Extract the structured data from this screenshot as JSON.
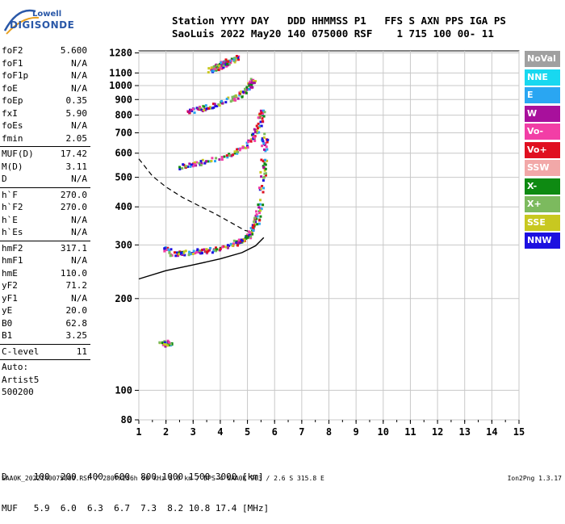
{
  "logo": {
    "line1": "Lowell",
    "line2": "DIGISONDE"
  },
  "header": {
    "line1": "Station YYYY DAY   DDD HHMMSS P1   FFS S AXN PPS IGA PS",
    "line2": "SaoLuis 2022 May20 140 075000 RSF    1 715 100 00- 11"
  },
  "params": {
    "group1": [
      {
        "name": "foF2",
        "value": "5.600"
      },
      {
        "name": "foF1",
        "value": "N/A"
      },
      {
        "name": "foF1p",
        "value": "N/A"
      },
      {
        "name": "foE",
        "value": "N/A"
      },
      {
        "name": "foEp",
        "value": "0.35"
      },
      {
        "name": "fxI",
        "value": "5.90"
      },
      {
        "name": "foEs",
        "value": "N/A"
      },
      {
        "name": "fmin",
        "value": "2.05"
      }
    ],
    "group2": [
      {
        "name": "MUF(D)",
        "value": "17.42"
      },
      {
        "name": "M(D)",
        "value": "3.11"
      },
      {
        "name": "D",
        "value": "N/A"
      }
    ],
    "group3": [
      {
        "name": "h`F",
        "value": "270.0"
      },
      {
        "name": "h`F2",
        "value": "270.0"
      },
      {
        "name": "h`E",
        "value": "N/A"
      },
      {
        "name": "h`Es",
        "value": "N/A"
      }
    ],
    "group4": [
      {
        "name": "hmF2",
        "value": "317.1"
      },
      {
        "name": "hmF1",
        "value": "N/A"
      },
      {
        "name": "hmE",
        "value": "110.0"
      },
      {
        "name": "yF2",
        "value": "71.2"
      },
      {
        "name": "yF1",
        "value": "N/A"
      },
      {
        "name": "yE",
        "value": "20.0"
      },
      {
        "name": "B0",
        "value": "62.8"
      },
      {
        "name": "B1",
        "value": "3.25"
      }
    ],
    "group5": [
      {
        "name": "C-level",
        "value": "11"
      }
    ],
    "auto": [
      "Auto:",
      "Artist5",
      "500200"
    ]
  },
  "legend": [
    {
      "label": "NoVal",
      "color": "#a0a0a0"
    },
    {
      "label": "NNE",
      "color": "#18d8f0"
    },
    {
      "label": "E",
      "color": "#2aa6f2"
    },
    {
      "label": "W",
      "color": "#a8109c"
    },
    {
      "label": "Vo-",
      "color": "#f23ea6"
    },
    {
      "label": "Vo+",
      "color": "#e01020"
    },
    {
      "label": "SSW",
      "color": "#f2a8a8"
    },
    {
      "label": "X-",
      "color": "#0e8a12"
    },
    {
      "label": "X+",
      "color": "#7cba5e"
    },
    {
      "label": "SSE",
      "color": "#c8c820"
    },
    {
      "label": "NNW",
      "color": "#1c10e0"
    }
  ],
  "bottom": {
    "line1": "D     100  200  400  600  800 1000 1500 3000 [km]",
    "line2": "MUF   5.9  6.0  6.3  6.7  7.3  8.2 10.8 17.4 [MHz]"
  },
  "footer": {
    "left": "SAA0K_2022140075000.RSF / 280fx256h 50 kHz 5.0 km / DPS-4 SAA0K 903 / 2.6 S 315.8 E",
    "right": "Ion2Png 1.3.17"
  },
  "chart_data": {
    "type": "scatter",
    "title": "",
    "xlabel": "",
    "ylabel": "",
    "xlim": [
      1,
      15
    ],
    "ylim": [
      80,
      1300
    ],
    "y_scale": "log",
    "x_ticks": [
      "1",
      "2",
      "3",
      "4",
      "5",
      "6",
      "7",
      "8",
      "9",
      "10",
      "11",
      "12",
      "13",
      "14",
      "15"
    ],
    "y_ticks": [
      "80",
      "100",
      "200",
      "300",
      "400",
      "500",
      "600",
      "700",
      "800",
      "900",
      "1000",
      "1100",
      "1280"
    ],
    "grid": true,
    "traces": [
      {
        "name": "1st hop F2 trace",
        "points": [
          [
            1.9,
            295
          ],
          [
            2.2,
            283
          ],
          [
            2.6,
            283
          ],
          [
            3.0,
            287
          ],
          [
            3.5,
            290
          ],
          [
            4.0,
            296
          ],
          [
            4.5,
            305
          ],
          [
            4.9,
            318
          ],
          [
            5.1,
            332
          ],
          [
            5.3,
            360
          ],
          [
            5.4,
            400
          ],
          [
            5.5,
            460
          ],
          [
            5.55,
            540
          ],
          [
            5.6,
            620
          ],
          [
            5.6,
            700
          ]
        ]
      },
      {
        "name": "2nd hop F2 trace",
        "points": [
          [
            2.5,
            545
          ],
          [
            3.0,
            556
          ],
          [
            3.5,
            570
          ],
          [
            4.0,
            585
          ],
          [
            4.5,
            605
          ],
          [
            4.8,
            625
          ],
          [
            5.1,
            660
          ],
          [
            5.3,
            710
          ],
          [
            5.45,
            770
          ],
          [
            5.5,
            830
          ]
        ]
      },
      {
        "name": "3rd hop F2 trace",
        "points": [
          [
            2.8,
            825
          ],
          [
            3.2,
            845
          ],
          [
            3.7,
            868
          ],
          [
            4.2,
            895
          ],
          [
            4.6,
            930
          ],
          [
            4.9,
            970
          ],
          [
            5.1,
            1020
          ],
          [
            5.2,
            1050
          ]
        ]
      },
      {
        "name": "4th hop F2 trace",
        "points": [
          [
            3.6,
            1130
          ],
          [
            3.9,
            1160
          ],
          [
            4.2,
            1200
          ],
          [
            4.6,
            1250
          ]
        ]
      },
      {
        "name": "Es trace",
        "points": [
          [
            1.8,
            145
          ],
          [
            2.0,
            143
          ],
          [
            2.1,
            145
          ]
        ]
      }
    ],
    "profile_solid": [
      [
        1,
        232
      ],
      [
        2,
        247
      ],
      [
        3,
        258
      ],
      [
        4,
        270
      ],
      [
        4.8,
        283
      ],
      [
        5.3,
        298
      ],
      [
        5.6,
        317
      ]
    ],
    "profile_dashed": [
      [
        1,
        575
      ],
      [
        1.5,
        505
      ],
      [
        2.0,
        465
      ],
      [
        2.6,
        430
      ],
      [
        3.2,
        404
      ],
      [
        3.8,
        380
      ],
      [
        4.4,
        355
      ],
      [
        4.9,
        335
      ],
      [
        5.2,
        330
      ]
    ]
  }
}
